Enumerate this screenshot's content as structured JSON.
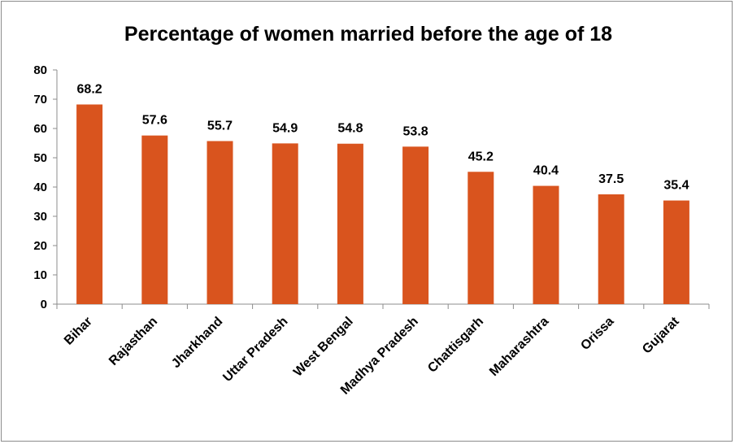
{
  "chart_data": {
    "type": "bar",
    "title": "Percentage of women married before the age of 18",
    "xlabel": "",
    "ylabel": "",
    "categories": [
      "Bihar",
      "Rajasthan",
      "Jharkhand",
      "Uttar Pradesh",
      "West Bengal",
      "Madhya Pradesh",
      "Chattisgarh",
      "Maharashtra",
      "Orissa",
      "Gujarat"
    ],
    "values": [
      68.2,
      57.6,
      55.7,
      54.9,
      54.8,
      53.8,
      45.2,
      40.4,
      37.5,
      35.4
    ],
    "value_labels": [
      "68.2",
      "57.6",
      "55.7",
      "54.9",
      "54.8",
      "53.8",
      "45.2",
      "40.4",
      "37.5",
      "35.4"
    ],
    "ylim": [
      0,
      80
    ],
    "yticks": [
      "0",
      "10",
      "20",
      "30",
      "40",
      "50",
      "60",
      "70",
      "80"
    ],
    "grid": false,
    "legend": "none",
    "bar_color": "#d9541e"
  }
}
